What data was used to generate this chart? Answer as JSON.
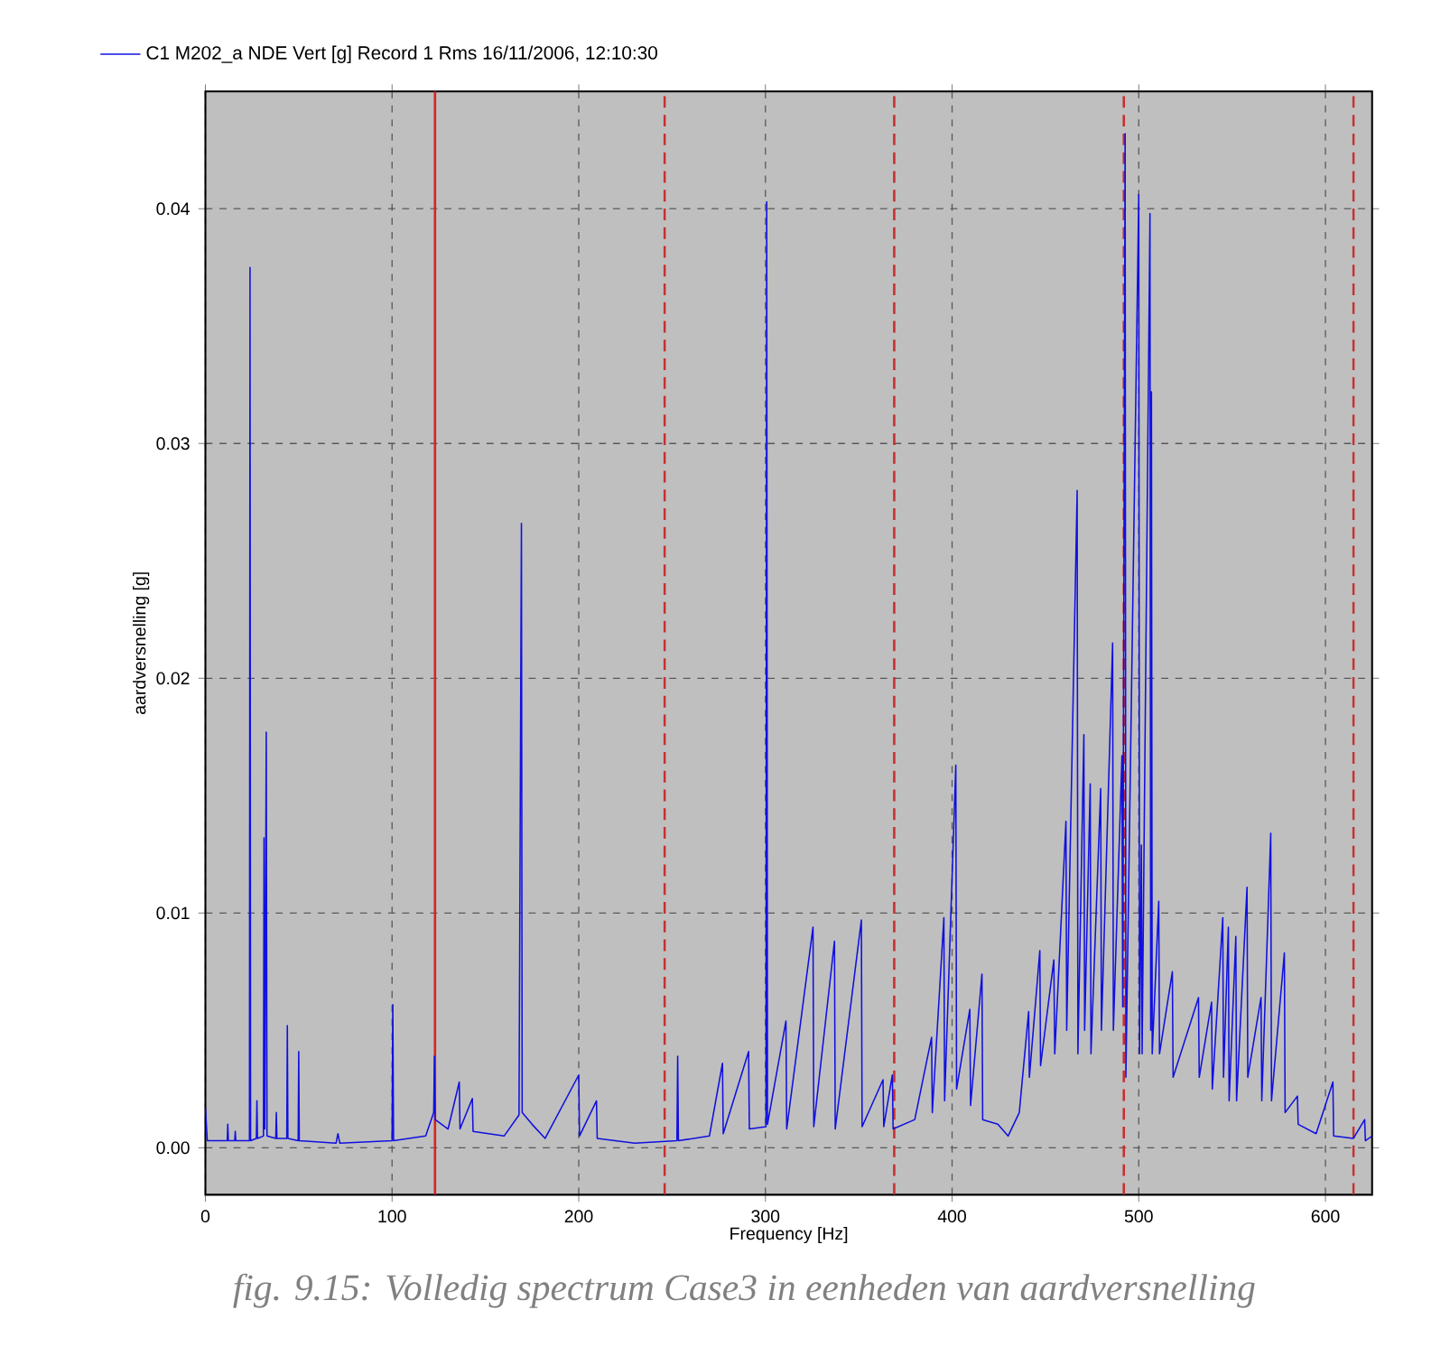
{
  "chart_data": {
    "type": "line",
    "xlabel": "Frequency [Hz]",
    "ylabel": "aardversnelling [g]",
    "xlim": [
      0,
      625
    ],
    "ylim": [
      -0.002,
      0.045
    ],
    "xticks": [
      0,
      100,
      200,
      300,
      400,
      500,
      600
    ],
    "yticks": [
      {
        "value": 0,
        "label": "0.00"
      },
      {
        "value": 0.01,
        "label": "0.01"
      },
      {
        "value": 0.02,
        "label": "0.02"
      },
      {
        "value": 0.03,
        "label": "0.03"
      },
      {
        "value": 0.04,
        "label": "0.04"
      }
    ],
    "grid": true,
    "legend": "top left",
    "series": [
      {
        "name": "C1 M202_a NDE Vert [g]   Record 1   Rms 16/11/2006, 12:10:30",
        "color": "#1010e0",
        "x": [
          0,
          1,
          11.7,
          12,
          12.3,
          15.7,
          16,
          16.3,
          23.6,
          23.9,
          24.2,
          27.3,
          27.6,
          27.9,
          31.1,
          31.4,
          31.8,
          32.6,
          33,
          37.7,
          38,
          38.3,
          43.6,
          43.9,
          44.2,
          49.7,
          50,
          50.3,
          70,
          71,
          72,
          100,
          100.4,
          100.8,
          118,
          122.3,
          122.7,
          123.1,
          130,
          136,
          136.4,
          143,
          143.4,
          160,
          168,
          169.3,
          169.7,
          175,
          182,
          200,
          200.4,
          209.5,
          209.9,
          230,
          252.6,
          253,
          253.4,
          270,
          277,
          277.4,
          291,
          291.4,
          300.3,
          300.7,
          301.1,
          311,
          311.4,
          325.5,
          325.9,
          337,
          337.4,
          351.4,
          351.8,
          363,
          363.4,
          368,
          368.4,
          380,
          389,
          389.4,
          395.6,
          396,
          402,
          402.4,
          409.5,
          409.9,
          416,
          416.4,
          424.5,
          430,
          436,
          441,
          441.4,
          447,
          447.4,
          454.5,
          455,
          461,
          461.4,
          467,
          467.4,
          470.6,
          471,
          474,
          474.4,
          479.6,
          480,
          486,
          486.4,
          491,
          491.4,
          492.7,
          493.1,
          500,
          500.4,
          501.4,
          501.8,
          506,
          506.4,
          506.8,
          507.2,
          510.7,
          511.1,
          518,
          518.4,
          532,
          532.4,
          539,
          539.4,
          545,
          545.4,
          548,
          548.4,
          552,
          552.4,
          558,
          558.4,
          565.5,
          565.9,
          570.7,
          571.1,
          578,
          578.4,
          585,
          585.4,
          595,
          604,
          604.4,
          615,
          621,
          621.4,
          625
        ],
        "values": [
          0.0017,
          0.0003,
          0.0003,
          0.001,
          0.0003,
          0.0003,
          0.0007,
          0.0003,
          0.0003,
          0.0375,
          0.0003,
          0.0004,
          0.002,
          0.0004,
          0.0005,
          0.0132,
          0.0008,
          0.0177,
          0.0005,
          0.0004,
          0.0015,
          0.0004,
          0.0004,
          0.0052,
          0.0004,
          0.0003,
          0.0041,
          0.0003,
          0.0002,
          0.0006,
          0.0002,
          0.0003,
          0.0061,
          0.0003,
          0.0005,
          0.0015,
          0.0039,
          0.0012,
          0.0008,
          0.0028,
          0.0008,
          0.0021,
          0.0007,
          0.0005,
          0.0014,
          0.0266,
          0.0015,
          0.001,
          0.0004,
          0.0031,
          0.0005,
          0.002,
          0.0004,
          0.0002,
          0.0003,
          0.0039,
          0.0003,
          0.0005,
          0.0036,
          0.0006,
          0.0041,
          0.0008,
          0.0009,
          0.0403,
          0.001,
          0.0054,
          0.0008,
          0.0094,
          0.0009,
          0.0088,
          0.0008,
          0.0097,
          0.0009,
          0.0029,
          0.0009,
          0.0031,
          0.0008,
          0.0012,
          0.0047,
          0.0015,
          0.0098,
          0.002,
          0.0163,
          0.0025,
          0.0059,
          0.0018,
          0.0074,
          0.0012,
          0.001,
          0.0005,
          0.0015,
          0.0058,
          0.003,
          0.0084,
          0.0035,
          0.008,
          0.004,
          0.0139,
          0.005,
          0.028,
          0.004,
          0.0176,
          0.005,
          0.0155,
          0.004,
          0.0153,
          0.005,
          0.0215,
          0.005,
          0.0167,
          0.006,
          0.0432,
          0.003,
          0.0406,
          0.004,
          0.0129,
          0.004,
          0.0398,
          0.005,
          0.0322,
          0.004,
          0.0105,
          0.004,
          0.0075,
          0.003,
          0.0064,
          0.003,
          0.0062,
          0.0025,
          0.0098,
          0.003,
          0.0094,
          0.002,
          0.009,
          0.002,
          0.0111,
          0.003,
          0.0064,
          0.002,
          0.0134,
          0.002,
          0.0083,
          0.0015,
          0.0022,
          0.001,
          0.0006,
          0.0028,
          0.0005,
          0.0004,
          0.0012,
          0.0003,
          0.0005
        ]
      }
    ],
    "ref_lines": [
      {
        "axis": "x",
        "value": 123,
        "color": "#e02020",
        "line_style": "solid"
      },
      {
        "axis": "x",
        "value": 246,
        "color": "#c83030",
        "line_style": "dashed"
      },
      {
        "axis": "x",
        "value": 369,
        "color": "#c83030",
        "line_style": "dashed"
      },
      {
        "axis": "x",
        "value": 492,
        "color": "#c83030",
        "line_style": "dashed"
      },
      {
        "axis": "x",
        "value": 615,
        "color": "#c83030",
        "line_style": "dashed"
      }
    ],
    "annotations": [
      "fig. 9.15: Volledig spectrum Case3 in eenheden van aardversnelling"
    ]
  }
}
